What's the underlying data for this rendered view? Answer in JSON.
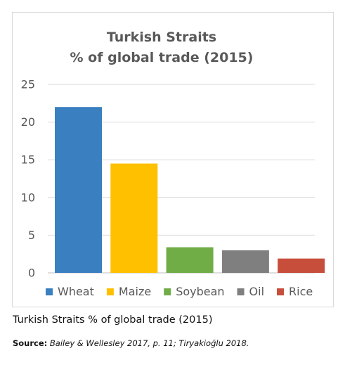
{
  "chart_data": {
    "type": "bar",
    "title": "Turkish Straits\n% of global trade (2015)",
    "categories": [
      "Wheat",
      "Maize",
      "Soybean",
      "Oil",
      "Rice"
    ],
    "values": [
      22,
      14.5,
      3.4,
      3.0,
      1.9
    ],
    "colors": [
      "#3a7fc0",
      "#ffc000",
      "#70ad47",
      "#7f7f7f",
      "#c84e3c"
    ],
    "ylim": [
      0,
      25
    ],
    "yticks": [
      0,
      5,
      10,
      15,
      20,
      25
    ],
    "grid": true,
    "legend": "bottom",
    "xlabel": "",
    "ylabel": ""
  },
  "caption": "Turkish Straits % of global trade (2015)",
  "source": {
    "label": "Source:",
    "text": "Bailey & Wellesley 2017, p. 11; Tiryakioğlu 2018."
  }
}
